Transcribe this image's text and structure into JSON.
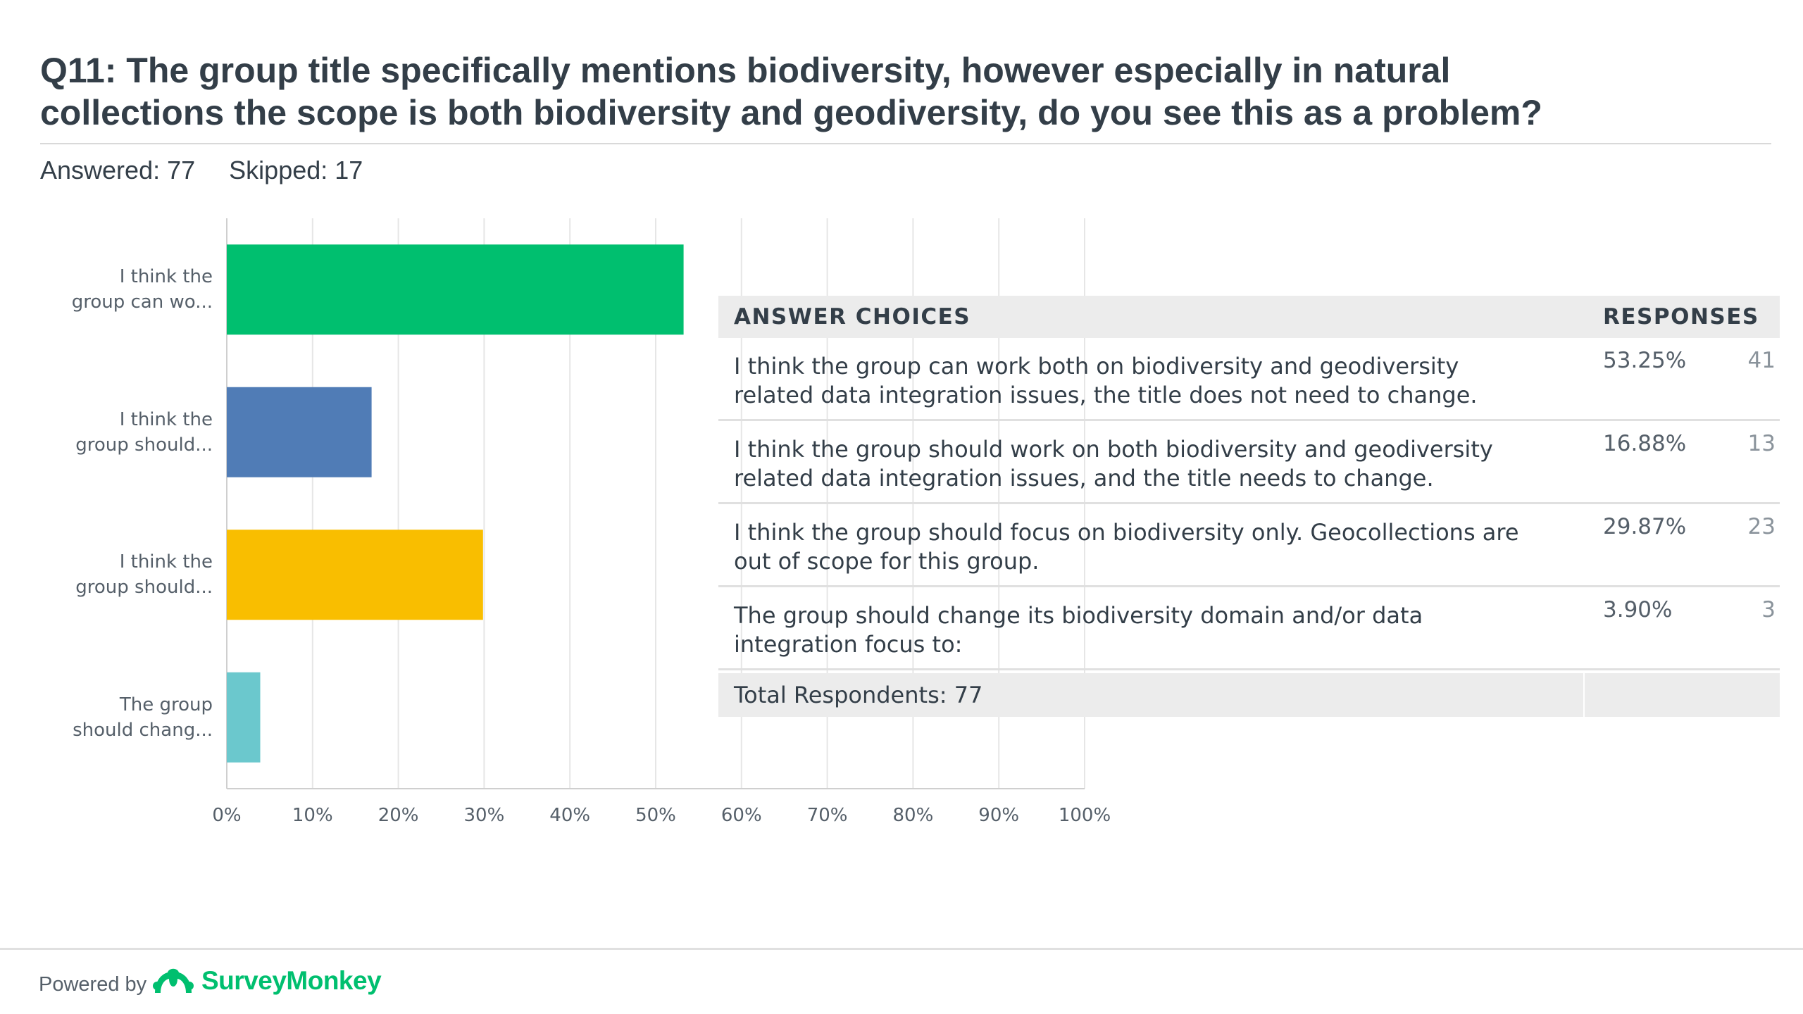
{
  "question": {
    "line1": "Q11: The group title specifically mentions biodiversity, however especially in natural",
    "line2": "collections the scope is both biodiversity and geodiversity, do you see this as a problem?"
  },
  "stats": {
    "answered": "Answered: 77",
    "skipped": "Skipped: 17"
  },
  "chart_data": {
    "type": "bar",
    "orientation": "horizontal",
    "categories": [
      [
        "I think the",
        "group can wo..."
      ],
      [
        "I think the",
        "group should..."
      ],
      [
        "I think the",
        "group should..."
      ],
      [
        "The group",
        "should chang..."
      ]
    ],
    "values": [
      53.25,
      16.88,
      29.87,
      3.9
    ],
    "colors": [
      "#00bf6f",
      "#507cb6",
      "#f9be00",
      "#6bc8cd"
    ],
    "xlim": [
      0,
      100
    ],
    "xticks": [
      "0%",
      "10%",
      "20%",
      "30%",
      "40%",
      "50%",
      "60%",
      "70%",
      "80%",
      "90%",
      "100%"
    ],
    "grid": true,
    "title": "",
    "xlabel": "",
    "ylabel": ""
  },
  "table": {
    "header": {
      "choices": "ANSWER CHOICES",
      "responses": "RESPONSES"
    },
    "rows": [
      {
        "line1": "I think the group can work both on biodiversity and geodiversity",
        "line2": "related data integration issues, the title does not need to change.",
        "percent": "53.25%",
        "count": "41"
      },
      {
        "line1": "I think the group should work on both biodiversity and geodiversity",
        "line2": "related data integration issues, and the title needs to change.",
        "percent": "16.88%",
        "count": "13"
      },
      {
        "line1": "I think the group should focus on biodiversity only. Geocollections are",
        "line2": "out of scope for this group.",
        "percent": "29.87%",
        "count": "23"
      },
      {
        "line1": "The group should change its biodiversity domain and/or data",
        "line2": "integration focus to:",
        "percent": "3.90%",
        "count": "3"
      }
    ],
    "total": "Total Respondents: 77"
  },
  "footer": {
    "powered_by": "Powered by",
    "brand": "SurveyMonkey"
  },
  "brand_color": "#00bf6f"
}
